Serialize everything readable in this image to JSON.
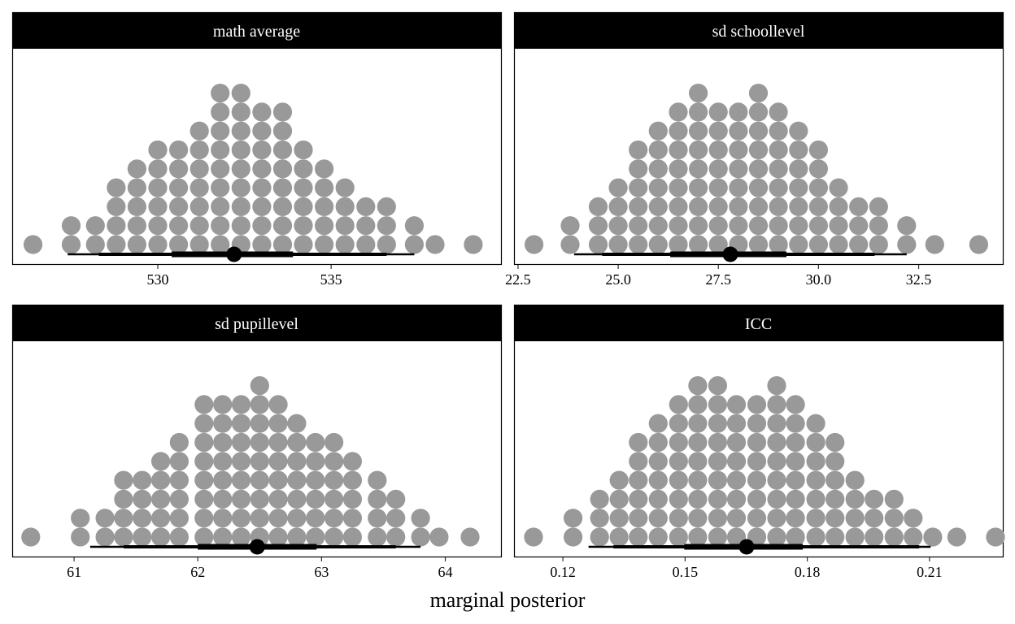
{
  "figure": {
    "xlabel": "marginal posterior"
  },
  "colors": {
    "dot": "#999999",
    "interval": "#000000",
    "strip_bg": "#000000",
    "strip_text": "#ffffff",
    "panel_border": "#000000"
  },
  "chart_data": [
    {
      "type": "dotplot",
      "title": "math average",
      "xlim": [
        525.8,
        539.9
      ],
      "xticks": [
        530,
        535
      ],
      "xtick_labels": [
        "530",
        "535"
      ],
      "binwidth": 0.5,
      "columns": [
        {
          "x": 526.4,
          "count": 1
        },
        {
          "x": 527.5,
          "count": 2
        },
        {
          "x": 528.2,
          "count": 2
        },
        {
          "x": 528.8,
          "count": 4
        },
        {
          "x": 529.4,
          "count": 5
        },
        {
          "x": 530.0,
          "count": 6
        },
        {
          "x": 530.6,
          "count": 6
        },
        {
          "x": 531.2,
          "count": 7
        },
        {
          "x": 531.8,
          "count": 9
        },
        {
          "x": 532.4,
          "count": 9
        },
        {
          "x": 533.0,
          "count": 8
        },
        {
          "x": 533.6,
          "count": 8
        },
        {
          "x": 534.2,
          "count": 6
        },
        {
          "x": 534.8,
          "count": 5
        },
        {
          "x": 535.4,
          "count": 4
        },
        {
          "x": 536.0,
          "count": 3
        },
        {
          "x": 536.6,
          "count": 3
        },
        {
          "x": 537.4,
          "count": 2
        },
        {
          "x": 538.0,
          "count": 1
        },
        {
          "x": 539.1,
          "count": 1
        }
      ],
      "interval": {
        "median": 532.2,
        "inner": [
          530.4,
          533.9
        ],
        "middle": [
          528.3,
          536.6
        ],
        "outer": [
          527.4,
          537.4
        ]
      }
    },
    {
      "type": "dotplot",
      "title": "sd schoollevel",
      "xlim": [
        22.4,
        34.6
      ],
      "xticks": [
        22.5,
        25.0,
        27.5,
        30.0,
        32.5
      ],
      "xtick_labels": [
        "22.5",
        "25.0",
        "27.5",
        "30.0",
        "32.5"
      ],
      "binwidth": 0.5,
      "columns": [
        {
          "x": 22.9,
          "count": 1
        },
        {
          "x": 23.8,
          "count": 2
        },
        {
          "x": 24.5,
          "count": 3
        },
        {
          "x": 25.0,
          "count": 4
        },
        {
          "x": 25.5,
          "count": 6
        },
        {
          "x": 26.0,
          "count": 7
        },
        {
          "x": 26.5,
          "count": 8
        },
        {
          "x": 27.0,
          "count": 9
        },
        {
          "x": 27.5,
          "count": 8
        },
        {
          "x": 28.0,
          "count": 8
        },
        {
          "x": 28.5,
          "count": 9
        },
        {
          "x": 29.0,
          "count": 8
        },
        {
          "x": 29.5,
          "count": 7
        },
        {
          "x": 30.0,
          "count": 6
        },
        {
          "x": 30.5,
          "count": 4
        },
        {
          "x": 31.0,
          "count": 3
        },
        {
          "x": 31.5,
          "count": 3
        },
        {
          "x": 32.2,
          "count": 2
        },
        {
          "x": 32.9,
          "count": 1
        },
        {
          "x": 34.0,
          "count": 1
        }
      ],
      "interval": {
        "median": 27.8,
        "inner": [
          26.3,
          29.2
        ],
        "middle": [
          24.6,
          31.4
        ],
        "outer": [
          23.9,
          32.2
        ]
      }
    },
    {
      "type": "dotplot",
      "title": "sd pupillevel",
      "xlim": [
        60.5,
        64.45
      ],
      "xticks": [
        61,
        62,
        63,
        64
      ],
      "xtick_labels": [
        "61",
        "62",
        "63",
        "64"
      ],
      "binwidth": 0.15,
      "columns": [
        {
          "x": 60.65,
          "count": 1
        },
        {
          "x": 61.05,
          "count": 2
        },
        {
          "x": 61.25,
          "count": 2
        },
        {
          "x": 61.4,
          "count": 4
        },
        {
          "x": 61.55,
          "count": 4
        },
        {
          "x": 61.7,
          "count": 5
        },
        {
          "x": 61.85,
          "count": 6
        },
        {
          "x": 62.05,
          "count": 8
        },
        {
          "x": 62.2,
          "count": 8
        },
        {
          "x": 62.35,
          "count": 8
        },
        {
          "x": 62.5,
          "count": 9
        },
        {
          "x": 62.65,
          "count": 8
        },
        {
          "x": 62.8,
          "count": 7
        },
        {
          "x": 62.95,
          "count": 6
        },
        {
          "x": 63.1,
          "count": 6
        },
        {
          "x": 63.25,
          "count": 5
        },
        {
          "x": 63.45,
          "count": 4
        },
        {
          "x": 63.6,
          "count": 3
        },
        {
          "x": 63.8,
          "count": 2
        },
        {
          "x": 63.95,
          "count": 1
        },
        {
          "x": 64.2,
          "count": 1
        }
      ],
      "interval": {
        "median": 62.48,
        "inner": [
          62.0,
          62.96
        ],
        "middle": [
          61.4,
          63.6
        ],
        "outer": [
          61.13,
          63.8
        ]
      }
    },
    {
      "type": "dotplot",
      "title": "ICC",
      "xlim": [
        0.108,
        0.228
      ],
      "xticks": [
        0.12,
        0.15,
        0.18,
        0.21
      ],
      "xtick_labels": [
        "0.12",
        "0.15",
        "0.18",
        "0.21"
      ],
      "binwidth": 0.005,
      "columns": [
        {
          "x": 0.1128,
          "count": 1
        },
        {
          "x": 0.1225,
          "count": 2
        },
        {
          "x": 0.129,
          "count": 3
        },
        {
          "x": 0.1338,
          "count": 4
        },
        {
          "x": 0.1385,
          "count": 6
        },
        {
          "x": 0.1434,
          "count": 7
        },
        {
          "x": 0.1484,
          "count": 8
        },
        {
          "x": 0.1531,
          "count": 9
        },
        {
          "x": 0.158,
          "count": 9
        },
        {
          "x": 0.1626,
          "count": 8
        },
        {
          "x": 0.1676,
          "count": 8
        },
        {
          "x": 0.1725,
          "count": 9
        },
        {
          "x": 0.1771,
          "count": 8
        },
        {
          "x": 0.1821,
          "count": 7
        },
        {
          "x": 0.1868,
          "count": 6
        },
        {
          "x": 0.1917,
          "count": 4
        },
        {
          "x": 0.1964,
          "count": 3
        },
        {
          "x": 0.2013,
          "count": 3
        },
        {
          "x": 0.206,
          "count": 2
        },
        {
          "x": 0.2108,
          "count": 1
        },
        {
          "x": 0.2167,
          "count": 1
        },
        {
          "x": 0.2262,
          "count": 1
        }
      ],
      "interval": {
        "median": 0.1651,
        "inner": [
          0.1498,
          0.1789
        ],
        "middle": [
          0.1324,
          0.2075
        ],
        "outer": [
          0.1263,
          0.2103
        ]
      }
    }
  ]
}
